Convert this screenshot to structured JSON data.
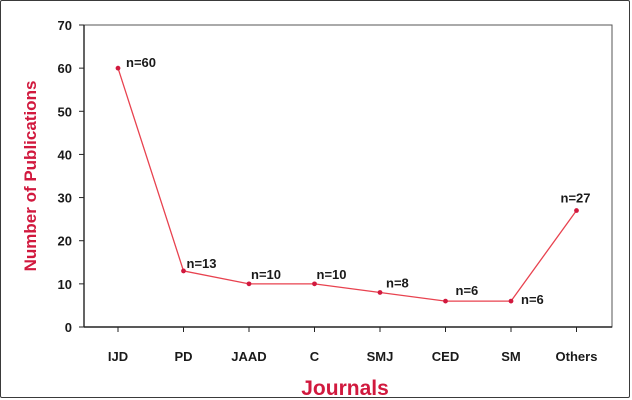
{
  "chart_data": {
    "type": "line",
    "xlabel": "Journals",
    "ylabel": "Number of Publications",
    "categories": [
      "IJD",
      "PD",
      "JAAD",
      "C",
      "SMJ",
      "CED",
      "SM",
      "Others"
    ],
    "values": [
      60,
      13,
      10,
      10,
      8,
      6,
      6,
      27
    ],
    "data_labels": [
      "n=60",
      "n=13",
      "n=10",
      "n=10",
      "n=8",
      "n=6",
      "n=6",
      "n=27"
    ],
    "ylim": [
      0,
      70
    ],
    "yticks": [
      "0",
      "10",
      "20",
      "30",
      "40",
      "50",
      "60",
      "70"
    ],
    "grid": false,
    "legend": "none",
    "line_color": "#e8424f",
    "marker_color": "#d1193e",
    "title_color": "#d1193e"
  }
}
